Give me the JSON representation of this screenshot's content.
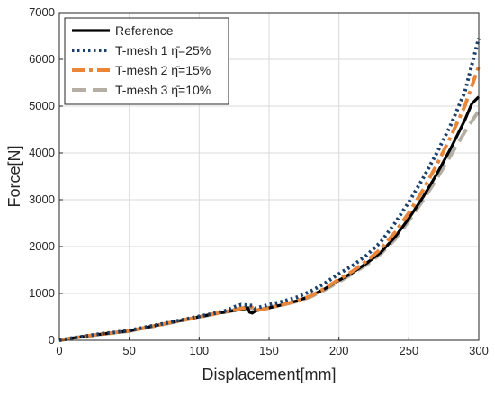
{
  "chart_data": {
    "type": "line",
    "title": "",
    "xlabel": "Displacement[mm]",
    "ylabel": "Force[N]",
    "xlim": [
      0,
      300
    ],
    "ylim": [
      0,
      7000
    ],
    "xticks": [
      0,
      50,
      100,
      150,
      200,
      250,
      300
    ],
    "yticks": [
      0,
      1000,
      2000,
      3000,
      4000,
      5000,
      6000,
      7000
    ],
    "grid": true,
    "legend_position": "top-left",
    "series": [
      {
        "name": "Reference",
        "color": "#000000",
        "style": "solid",
        "points": [
          [
            0,
            0
          ],
          [
            10,
            50
          ],
          [
            20,
            90
          ],
          [
            30,
            130
          ],
          [
            40,
            165
          ],
          [
            50,
            200
          ],
          [
            60,
            260
          ],
          [
            70,
            320
          ],
          [
            80,
            380
          ],
          [
            90,
            440
          ],
          [
            100,
            500
          ],
          [
            110,
            560
          ],
          [
            120,
            610
          ],
          [
            130,
            660
          ],
          [
            135,
            690
          ],
          [
            136,
            600
          ],
          [
            138,
            580
          ],
          [
            140,
            620
          ],
          [
            145,
            660
          ],
          [
            150,
            690
          ],
          [
            160,
            760
          ],
          [
            170,
            840
          ],
          [
            180,
            950
          ],
          [
            190,
            1100
          ],
          [
            200,
            1280
          ],
          [
            210,
            1450
          ],
          [
            220,
            1650
          ],
          [
            230,
            1880
          ],
          [
            240,
            2200
          ],
          [
            250,
            2600
          ],
          [
            260,
            3050
          ],
          [
            270,
            3550
          ],
          [
            280,
            4100
          ],
          [
            290,
            4700
          ],
          [
            295,
            5050
          ],
          [
            300,
            5200
          ]
        ]
      },
      {
        "name": "T-mesh 1 η̄=25%",
        "color": "#1a3f6b",
        "style": "dotted",
        "points": [
          [
            0,
            0
          ],
          [
            10,
            50
          ],
          [
            20,
            95
          ],
          [
            30,
            140
          ],
          [
            40,
            170
          ],
          [
            50,
            210
          ],
          [
            60,
            270
          ],
          [
            70,
            330
          ],
          [
            80,
            390
          ],
          [
            90,
            450
          ],
          [
            100,
            510
          ],
          [
            110,
            570
          ],
          [
            120,
            640
          ],
          [
            125,
            710
          ],
          [
            130,
            760
          ],
          [
            138,
            740
          ],
          [
            140,
            680
          ],
          [
            145,
            720
          ],
          [
            150,
            760
          ],
          [
            160,
            830
          ],
          [
            170,
            920
          ],
          [
            180,
            1050
          ],
          [
            190,
            1220
          ],
          [
            200,
            1420
          ],
          [
            210,
            1600
          ],
          [
            220,
            1820
          ],
          [
            230,
            2100
          ],
          [
            240,
            2500
          ],
          [
            250,
            2950
          ],
          [
            260,
            3450
          ],
          [
            270,
            4000
          ],
          [
            280,
            4600
          ],
          [
            290,
            5300
          ],
          [
            300,
            6450
          ]
        ]
      },
      {
        "name": "T-mesh 2 η̄=15%",
        "color": "#e8863a",
        "style": "dashdot",
        "points": [
          [
            0,
            0
          ],
          [
            10,
            50
          ],
          [
            20,
            90
          ],
          [
            30,
            130
          ],
          [
            40,
            165
          ],
          [
            50,
            200
          ],
          [
            60,
            260
          ],
          [
            70,
            320
          ],
          [
            80,
            380
          ],
          [
            90,
            440
          ],
          [
            100,
            500
          ],
          [
            110,
            560
          ],
          [
            120,
            620
          ],
          [
            130,
            680
          ],
          [
            137,
            720
          ],
          [
            140,
            640
          ],
          [
            145,
            660
          ],
          [
            150,
            690
          ],
          [
            160,
            760
          ],
          [
            170,
            840
          ],
          [
            180,
            950
          ],
          [
            190,
            1110
          ],
          [
            200,
            1300
          ],
          [
            210,
            1480
          ],
          [
            220,
            1700
          ],
          [
            230,
            1950
          ],
          [
            240,
            2300
          ],
          [
            250,
            2720
          ],
          [
            260,
            3200
          ],
          [
            270,
            3750
          ],
          [
            280,
            4350
          ],
          [
            290,
            5000
          ],
          [
            300,
            5850
          ]
        ]
      },
      {
        "name": "T-mesh 3 η̄=10%",
        "color": "#b5aea4",
        "style": "dashed",
        "points": [
          [
            0,
            0
          ],
          [
            10,
            50
          ],
          [
            20,
            90
          ],
          [
            30,
            130
          ],
          [
            40,
            160
          ],
          [
            50,
            195
          ],
          [
            60,
            255
          ],
          [
            70,
            315
          ],
          [
            80,
            375
          ],
          [
            90,
            435
          ],
          [
            100,
            495
          ],
          [
            110,
            555
          ],
          [
            120,
            610
          ],
          [
            130,
            660
          ],
          [
            137,
            700
          ],
          [
            140,
            650
          ],
          [
            145,
            670
          ],
          [
            150,
            700
          ],
          [
            160,
            760
          ],
          [
            170,
            830
          ],
          [
            180,
            930
          ],
          [
            190,
            1080
          ],
          [
            200,
            1250
          ],
          [
            210,
            1430
          ],
          [
            220,
            1620
          ],
          [
            230,
            1850
          ],
          [
            240,
            2150
          ],
          [
            250,
            2550
          ],
          [
            260,
            2980
          ],
          [
            270,
            3450
          ],
          [
            280,
            3950
          ],
          [
            290,
            4450
          ],
          [
            300,
            4900
          ]
        ]
      }
    ]
  }
}
